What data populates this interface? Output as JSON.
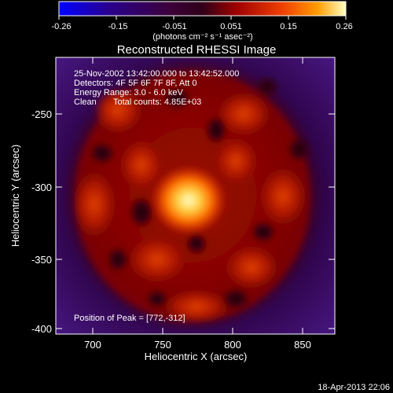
{
  "colorbar": {
    "ticks": [
      "-0.26",
      "-0.15",
      "-0.051",
      "0.051",
      "0.15",
      "0.26"
    ],
    "units": "(photons cm⁻² s⁻¹ asec⁻²)"
  },
  "plot": {
    "title": "Reconstructed RHESSI Image",
    "xlabel": "Heliocentric X (arcsec)",
    "ylabel": "Heliocentric Y (arcsec)",
    "xticks": [
      "700",
      "750",
      "800",
      "850"
    ],
    "yticks": [
      "-250",
      "-300",
      "-350",
      "-400"
    ],
    "xrange": [
      680,
      870
    ],
    "yrange": [
      -405,
      -215
    ]
  },
  "annotations": {
    "line1": "25-Nov-2002 13:42:00.000 to 13:42:52.000",
    "line2": "Detectors: 4F 5F 6F 7F 8F, Att 0",
    "line3": "Energy Range: 3.0 - 6.0 keV",
    "line4_left": "Clean",
    "line4_right": "Total counts: 4.85E+03",
    "peak": "Position of Peak = [772,-312]"
  },
  "timestamp": "18-Apr-2013 22:06",
  "colors": {
    "cmap": [
      "#0000ff",
      "#2a008a",
      "#3c0048",
      "#3a002a",
      "#5a0000",
      "#8c0000",
      "#c42000",
      "#f04000",
      "#ff8000",
      "#ffd000",
      "#ffffb0"
    ]
  }
}
